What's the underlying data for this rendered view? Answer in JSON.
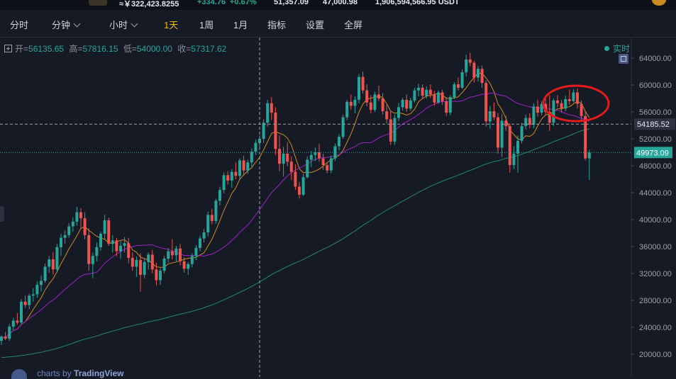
{
  "ticker": {
    "price": "≈￥322,423.8255",
    "change": "+334.76",
    "change_pct": "+0.67%",
    "high": "51,357.09",
    "low": "47,000.98",
    "volume": "1,906,594,566.95 USDT"
  },
  "toolbar": {
    "items": [
      {
        "label": "分时",
        "active": false,
        "dropdown": false
      },
      {
        "label": "分钟",
        "active": false,
        "dropdown": true
      },
      {
        "label": "小时",
        "active": false,
        "dropdown": true
      },
      {
        "label": "1天",
        "active": true,
        "dropdown": false
      },
      {
        "label": "1周",
        "active": false,
        "dropdown": false
      },
      {
        "label": "1月",
        "active": false,
        "dropdown": false
      },
      {
        "label": "指标",
        "active": false,
        "dropdown": false
      },
      {
        "label": "设置",
        "active": false,
        "dropdown": false
      },
      {
        "label": "全屏",
        "active": false,
        "dropdown": false
      }
    ]
  },
  "ohlc": {
    "open_label": "开=",
    "open": "56135.65",
    "high_label": "高=",
    "high": "57816.15",
    "low_label": "低=",
    "low": "54000.00",
    "close_label": "收=",
    "close": "57317.62"
  },
  "realtime_label": "实时",
  "watermark": {
    "prefix": "charts by",
    "brand": "TradingView"
  },
  "colors": {
    "up": "#26a69a",
    "down": "#ef5350",
    "bg": "#161a25",
    "ma_short": "#d08a1f",
    "ma_mid": "#a020c8",
    "ma_long": "#1f8a6a",
    "annotation": "#e31b1b",
    "price_tag": "#2e3344",
    "last_tag": "#26a69a"
  },
  "chart_data": {
    "type": "candlestick",
    "interval": "1天",
    "y_ticks": [
      "64000.00",
      "60000.00",
      "56000.00",
      "52000.00",
      "48000.00",
      "44000.00",
      "40000.00",
      "36000.00",
      "32000.00",
      "28000.00",
      "24000.00",
      "20000.00"
    ],
    "ylim": [
      18000,
      66000
    ],
    "crosshair_price": "54185.52",
    "last_price": "49973.09",
    "ohlc": [
      [
        22000,
        22800,
        21400,
        22600
      ],
      [
        22600,
        23300,
        22100,
        22300
      ],
      [
        22300,
        24500,
        22000,
        24100
      ],
      [
        24100,
        25400,
        23600,
        25000
      ],
      [
        25000,
        26100,
        24400,
        24700
      ],
      [
        24700,
        28200,
        24500,
        27800
      ],
      [
        27800,
        28700,
        26900,
        27300
      ],
      [
        27300,
        29000,
        26700,
        28700
      ],
      [
        28700,
        29800,
        27800,
        28900
      ],
      [
        28900,
        30800,
        28400,
        30300
      ],
      [
        30300,
        31700,
        29300,
        30900
      ],
      [
        30900,
        33500,
        30600,
        33000
      ],
      [
        33000,
        34600,
        32100,
        34100
      ],
      [
        34100,
        35200,
        31900,
        32600
      ],
      [
        32600,
        36400,
        32300,
        35900
      ],
      [
        35900,
        37900,
        34600,
        37300
      ],
      [
        37300,
        38400,
        36400,
        37700
      ],
      [
        37700,
        39500,
        37300,
        39000
      ],
      [
        39000,
        40300,
        38200,
        39700
      ],
      [
        39700,
        41900,
        39100,
        41100
      ],
      [
        41100,
        41700,
        38600,
        40200
      ],
      [
        40200,
        41100,
        37100,
        37700
      ],
      [
        37700,
        38700,
        32400,
        33400
      ],
      [
        33400,
        35100,
        31300,
        34600
      ],
      [
        34600,
        36600,
        33800,
        35900
      ],
      [
        35900,
        38200,
        35400,
        37900
      ],
      [
        37900,
        40700,
        37100,
        39900
      ],
      [
        39900,
        40300,
        36100,
        36400
      ],
      [
        36400,
        37700,
        35100,
        36900
      ],
      [
        36900,
        37300,
        34600,
        35300
      ],
      [
        35300,
        36800,
        34200,
        36100
      ],
      [
        36100,
        37400,
        35100,
        36500
      ],
      [
        36500,
        37300,
        33500,
        34300
      ],
      [
        34300,
        35100,
        32400,
        33000
      ],
      [
        33000,
        34500,
        31500,
        34000
      ],
      [
        34000,
        35000,
        29300,
        31800
      ],
      [
        31800,
        34100,
        31300,
        33700
      ],
      [
        33700,
        35100,
        32600,
        34800
      ],
      [
        34800,
        35500,
        32000,
        32600
      ],
      [
        32600,
        33600,
        30200,
        31000
      ],
      [
        31000,
        32800,
        30300,
        32400
      ],
      [
        32400,
        34600,
        32000,
        34200
      ],
      [
        34200,
        35800,
        33600,
        35300
      ],
      [
        35300,
        37100,
        34100,
        34700
      ],
      [
        34700,
        36100,
        33800,
        35700
      ],
      [
        35700,
        36400,
        33200,
        33800
      ],
      [
        33800,
        34400,
        32100,
        32700
      ],
      [
        32700,
        33700,
        31800,
        33400
      ],
      [
        33400,
        35000,
        32900,
        34600
      ],
      [
        34600,
        36200,
        34000,
        35800
      ],
      [
        35800,
        37600,
        35300,
        37200
      ],
      [
        37200,
        38600,
        36600,
        38100
      ],
      [
        38100,
        41200,
        37500,
        40700
      ],
      [
        40700,
        41600,
        39300,
        39800
      ],
      [
        39800,
        43100,
        39400,
        42800
      ],
      [
        42800,
        44900,
        42100,
        44400
      ],
      [
        44400,
        47000,
        43900,
        46600
      ],
      [
        46600,
        47200,
        45200,
        45800
      ],
      [
        45800,
        47500,
        44700,
        47100
      ],
      [
        47100,
        48500,
        46000,
        46500
      ],
      [
        46500,
        49100,
        46000,
        48800
      ],
      [
        48800,
        49500,
        46700,
        47300
      ],
      [
        47300,
        48900,
        46800,
        48500
      ],
      [
        48500,
        50600,
        47900,
        50100
      ],
      [
        50100,
        51900,
        49600,
        51400
      ],
      [
        51400,
        52500,
        50400,
        52000
      ],
      [
        52000,
        54900,
        51400,
        54400
      ],
      [
        54400,
        57800,
        53800,
        57300
      ],
      [
        57300,
        58200,
        54800,
        55900
      ],
      [
        55900,
        56700,
        49600,
        50500
      ],
      [
        50500,
        52500,
        47200,
        48300
      ],
      [
        48300,
        50800,
        46400,
        49800
      ],
      [
        49800,
        51500,
        47900,
        48600
      ],
      [
        48600,
        49400,
        45900,
        47100
      ],
      [
        47100,
        48200,
        44400,
        44900
      ],
      [
        44900,
        45600,
        43100,
        43700
      ],
      [
        43700,
        46800,
        43500,
        46300
      ],
      [
        46300,
        49400,
        46100,
        48900
      ],
      [
        48900,
        50200,
        47800,
        49600
      ],
      [
        49600,
        50700,
        48700,
        50000
      ],
      [
        50000,
        51300,
        48600,
        49100
      ],
      [
        49100,
        49800,
        47400,
        48100
      ],
      [
        48100,
        48500,
        46900,
        47300
      ],
      [
        47300,
        49500,
        46900,
        49100
      ],
      [
        49100,
        51300,
        48700,
        50900
      ],
      [
        50900,
        52700,
        50300,
        52300
      ],
      [
        52300,
        55600,
        52000,
        55200
      ],
      [
        55200,
        57800,
        54800,
        57500
      ],
      [
        57500,
        58600,
        56300,
        56900
      ],
      [
        56900,
        58300,
        55800,
        57800
      ],
      [
        57800,
        61600,
        57300,
        61200
      ],
      [
        61200,
        62000,
        58700,
        59200
      ],
      [
        59200,
        60100,
        56800,
        57400
      ],
      [
        57400,
        58500,
        55800,
        56300
      ],
      [
        56300,
        59000,
        56000,
        58600
      ],
      [
        58600,
        59900,
        57600,
        58000
      ],
      [
        58000,
        58800,
        55600,
        56100
      ],
      [
        56100,
        57200,
        54300,
        54900
      ],
      [
        54900,
        56100,
        51100,
        51600
      ],
      [
        51600,
        55600,
        51100,
        55100
      ],
      [
        55100,
        57300,
        54600,
        56700
      ],
      [
        56700,
        58100,
        56200,
        57800
      ],
      [
        57800,
        58600,
        56000,
        56500
      ],
      [
        56500,
        58100,
        56200,
        57700
      ],
      [
        57700,
        59600,
        57400,
        59200
      ],
      [
        59200,
        60200,
        58300,
        59600
      ],
      [
        59600,
        60100,
        57900,
        58400
      ],
      [
        58400,
        59800,
        58000,
        59300
      ],
      [
        59300,
        60100,
        58100,
        58600
      ],
      [
        58600,
        59100,
        56900,
        57400
      ],
      [
        57400,
        59200,
        57200,
        58900
      ],
      [
        58900,
        59300,
        57000,
        57600
      ],
      [
        57600,
        58200,
        55400,
        55900
      ],
      [
        55900,
        58500,
        55500,
        58200
      ],
      [
        58200,
        60400,
        57900,
        60100
      ],
      [
        60100,
        61100,
        59200,
        59600
      ],
      [
        59600,
        62300,
        59400,
        61900
      ],
      [
        61900,
        64500,
        61300,
        63800
      ],
      [
        63800,
        64800,
        62800,
        63300
      ],
      [
        63300,
        63600,
        60400,
        61100
      ],
      [
        61100,
        62800,
        60500,
        62400
      ],
      [
        62400,
        62900,
        59600,
        60300
      ],
      [
        60300,
        60700,
        53800,
        54600
      ],
      [
        54600,
        56900,
        53500,
        56100
      ],
      [
        56100,
        57400,
        54800,
        55200
      ],
      [
        55200,
        55800,
        49800,
        50700
      ],
      [
        50700,
        55700,
        49300,
        54700
      ],
      [
        54700,
        55400,
        53200,
        53900
      ],
      [
        53900,
        54300,
        47000,
        48100
      ],
      [
        48100,
        50900,
        47500,
        49800
      ],
      [
        49800,
        52500,
        47000,
        51700
      ],
      [
        51700,
        54400,
        51300,
        53900
      ],
      [
        53900,
        55600,
        53400,
        55100
      ],
      [
        55100,
        55800,
        53600,
        54100
      ],
      [
        54100,
        57300,
        53600,
        56800
      ],
      [
        56800,
        57800,
        55300,
        55900
      ],
      [
        55900,
        57600,
        55500,
        57200
      ],
      [
        57200,
        58200,
        55600,
        56000
      ],
      [
        56000,
        58500,
        53200,
        54400
      ],
      [
        54400,
        58000,
        53900,
        57700
      ],
      [
        57700,
        58500,
        56700,
        57300
      ],
      [
        57300,
        57800,
        55900,
        56500
      ],
      [
        56500,
        58400,
        56100,
        57900
      ],
      [
        57900,
        59300,
        57100,
        57600
      ],
      [
        57600,
        59400,
        57400,
        58900
      ],
      [
        58900,
        59500,
        56500,
        57200
      ],
      [
        57200,
        57700,
        54800,
        55400
      ],
      [
        55400,
        56100,
        48800,
        49100
      ],
      [
        49100,
        50400,
        45900,
        49973
      ]
    ],
    "moving_averages": [
      {
        "period": 7,
        "color": "#d08a1f"
      },
      {
        "period": 25,
        "color": "#a020c8"
      },
      {
        "period": 99,
        "color": "#1f8a6a"
      }
    ],
    "annotations": [
      {
        "type": "ellipse",
        "color": "#e31b1b",
        "note": "highlight"
      }
    ]
  }
}
